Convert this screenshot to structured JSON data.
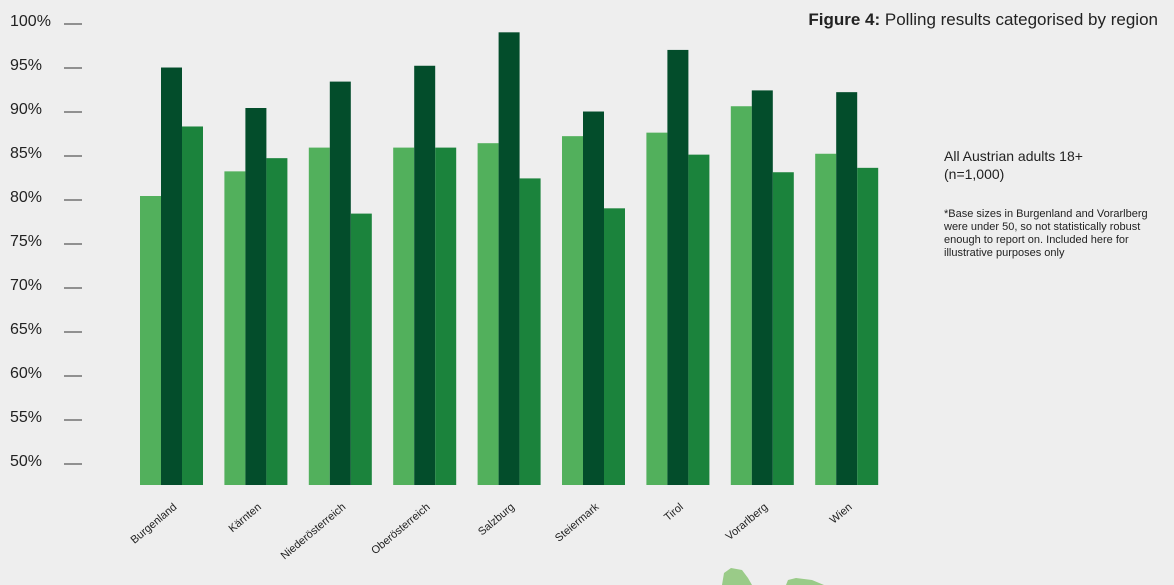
{
  "title_prefix": "Figure 4:",
  "title_text": "Polling results categorised by region",
  "note_main": "All Austrian adults 18+ (n=1,000)",
  "note_small": "*Base sizes in Burgenland and Vorarlberg were under 50, so not statistically robust enough to report on. Included here for illustrative purposes only",
  "colors": {
    "series_1": "#52b05c",
    "series_2": "#034d2b",
    "series_3": "#1b833c",
    "map_blob": "#9acb88"
  },
  "chart_data": {
    "type": "bar",
    "categories": [
      "Burgenland",
      "Kärnten",
      "Niederösterreich",
      "Oberösterreich",
      "Salzburg",
      "Steiermark",
      "Tirol",
      "Vorarlberg",
      "Wien"
    ],
    "series": [
      {
        "values": [
          80.0,
          82.8,
          85.5,
          85.5,
          86.0,
          86.8,
          87.2,
          90.2,
          84.8
        ]
      },
      {
        "values": [
          94.6,
          90.0,
          93.0,
          94.8,
          98.6,
          89.6,
          96.6,
          92.0,
          91.8
        ]
      },
      {
        "values": [
          87.9,
          84.3,
          78.0,
          85.5,
          82.0,
          78.6,
          84.7,
          82.7,
          83.2
        ]
      }
    ],
    "yticks": [
      "100%",
      "95%",
      "90%",
      "85%",
      "80%",
      "75%",
      "70%",
      "65%",
      "60%",
      "55%",
      "50%"
    ],
    "ylim": [
      50,
      100
    ],
    "grid": false,
    "legend": "none"
  }
}
